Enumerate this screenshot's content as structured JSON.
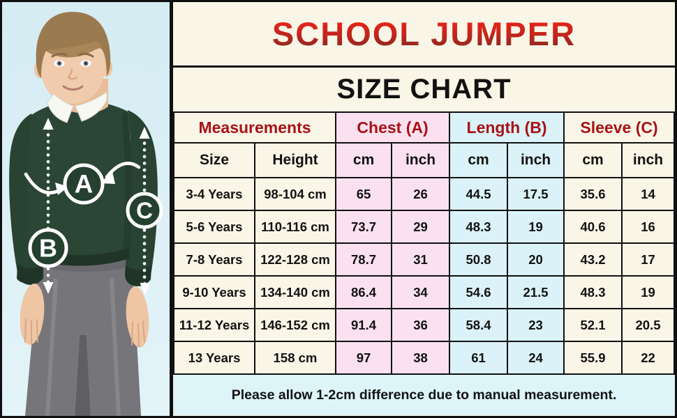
{
  "header": {
    "title": "SCHOOL JUMPER",
    "subtitle": "SIZE CHART"
  },
  "photo": {
    "description": "boy wearing green school jumper with measurement arrows",
    "annotations": {
      "chest": "A",
      "length": "B",
      "sleeve": "C"
    }
  },
  "table": {
    "group_headers": [
      "Measurements",
      "Chest (A)",
      "Length (B)",
      "Sleeve (C)"
    ],
    "sub_headers": [
      "Size",
      "Height",
      "cm",
      "inch",
      "cm",
      "inch",
      "cm",
      "inch"
    ],
    "rows": [
      [
        "3-4 Years",
        "98-104 cm",
        "65",
        "26",
        "44.5",
        "17.5",
        "35.6",
        "14"
      ],
      [
        "5-6 Years",
        "110-116 cm",
        "73.7",
        "29",
        "48.3",
        "19",
        "40.6",
        "16"
      ],
      [
        "7-8 Years",
        "122-128 cm",
        "78.7",
        "31",
        "50.8",
        "20",
        "43.2",
        "17"
      ],
      [
        "9-10 Years",
        "134-140 cm",
        "86.4",
        "34",
        "54.6",
        "21.5",
        "48.3",
        "19"
      ],
      [
        "11-12 Years",
        "146-152 cm",
        "91.4",
        "36",
        "58.4",
        "23",
        "52.1",
        "20.5"
      ],
      [
        "13 Years",
        "158 cm",
        "97",
        "38",
        "61",
        "24",
        "55.9",
        "22"
      ]
    ]
  },
  "footer": {
    "note": "Please allow 1-2cm difference due to manual measurement."
  },
  "colors": {
    "title_red_top": "#ee2318",
    "title_red_bottom": "#7e2a22",
    "header_red": "#a81217",
    "cream": "#faf6e7",
    "pink": "#fbe1f0",
    "light_blue": "#daf2f8",
    "footer_blue": "#ddf4f8",
    "photo_background": "#d8eef5",
    "jumper_green": "#294333",
    "border_black": "#101010"
  }
}
